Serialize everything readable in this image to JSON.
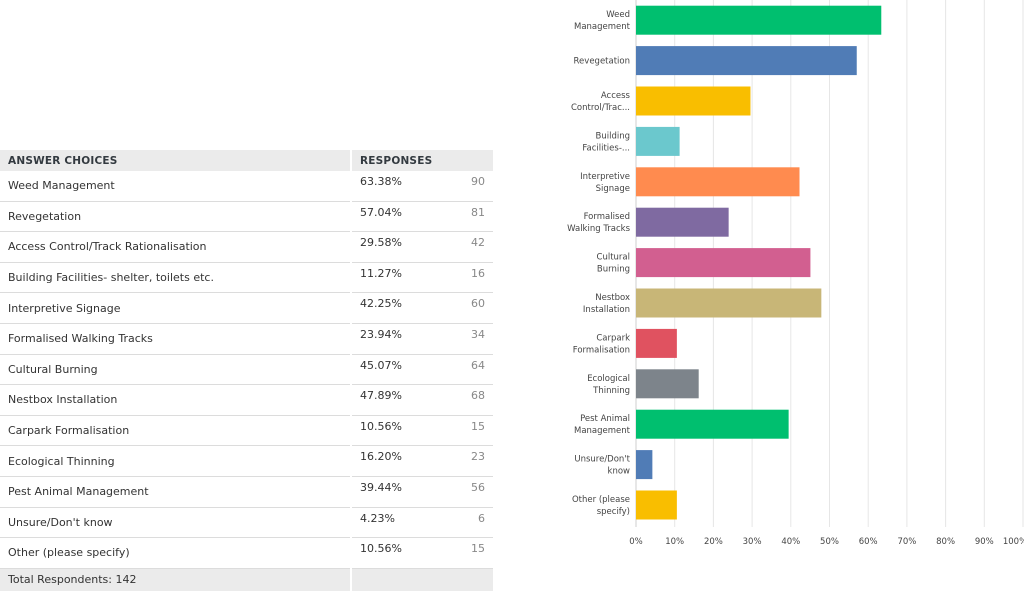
{
  "table": {
    "headers": {
      "choice": "ANSWER CHOICES",
      "responses": "RESPONSES"
    },
    "rows": [
      {
        "choice": "Weed Management",
        "percent": "63.38%",
        "count": "90"
      },
      {
        "choice": "Revegetation",
        "percent": "57.04%",
        "count": "81"
      },
      {
        "choice": "Access Control/Track Rationalisation",
        "percent": "29.58%",
        "count": "42"
      },
      {
        "choice": "Building Facilities- shelter, toilets etc.",
        "percent": "11.27%",
        "count": "16"
      },
      {
        "choice": "Interpretive Signage",
        "percent": "42.25%",
        "count": "60"
      },
      {
        "choice": "Formalised Walking Tracks",
        "percent": "23.94%",
        "count": "34"
      },
      {
        "choice": "Cultural Burning",
        "percent": "45.07%",
        "count": "64"
      },
      {
        "choice": "Nestbox Installation",
        "percent": "47.89%",
        "count": "68"
      },
      {
        "choice": "Carpark Formalisation",
        "percent": "10.56%",
        "count": "15"
      },
      {
        "choice": "Ecological Thinning",
        "percent": "16.20%",
        "count": "23"
      },
      {
        "choice": "Pest Animal Management",
        "percent": "39.44%",
        "count": "56"
      },
      {
        "choice": "Unsure/Don't know",
        "percent": "4.23%",
        "count": "6"
      },
      {
        "choice": "Other (please specify)",
        "percent": "10.56%",
        "count": "15"
      }
    ],
    "total": "Total Respondents: 142"
  },
  "chart_data": {
    "type": "bar",
    "orientation": "horizontal",
    "categories": [
      [
        "Weed",
        "Management"
      ],
      [
        "Revegetation"
      ],
      [
        "Access",
        "Control/Trac..."
      ],
      [
        "Building",
        "Facilities-..."
      ],
      [
        "Interpretive",
        "Signage"
      ],
      [
        "Formalised",
        "Walking Tracks"
      ],
      [
        "Cultural",
        "Burning"
      ],
      [
        "Nestbox",
        "Installation"
      ],
      [
        "Carpark",
        "Formalisation"
      ],
      [
        "Ecological",
        "Thinning"
      ],
      [
        "Pest Animal",
        "Management"
      ],
      [
        "Unsure/Don't",
        "know"
      ],
      [
        "Other (please",
        "specify)"
      ]
    ],
    "values": [
      63.38,
      57.04,
      29.58,
      11.27,
      42.25,
      23.94,
      45.07,
      47.89,
      10.56,
      16.2,
      39.44,
      4.23,
      10.56
    ],
    "colors": [
      "#00bf6f",
      "#507cb6",
      "#f9be00",
      "#6bc8cd",
      "#ff8b4f",
      "#7f6aa1",
      "#d25f90",
      "#c8b677",
      "#e05260",
      "#7d848b",
      "#00bf6f",
      "#507cb6",
      "#f9be00"
    ],
    "xlim": [
      0,
      100
    ],
    "xticks": [
      "0%",
      "10%",
      "20%",
      "30%",
      "40%",
      "50%",
      "60%",
      "70%",
      "80%",
      "90%",
      "100%"
    ],
    "grid": true
  }
}
